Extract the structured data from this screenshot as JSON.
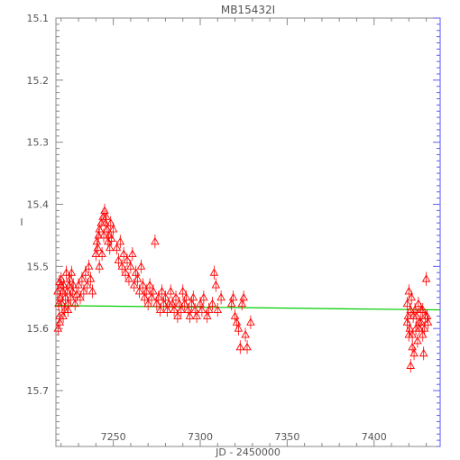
{
  "chart_data": {
    "type": "scatter",
    "title": "MB15432I",
    "xlabel": "JD - 2450000",
    "ylabel": "I",
    "xlim": [
      7217,
      7438
    ],
    "ylim": [
      15.79,
      15.1
    ],
    "y_inverted": true,
    "x_ticks": [
      "7250",
      "7300",
      "7350",
      "7400"
    ],
    "x_tick_values": [
      7250,
      7300,
      7350,
      7400
    ],
    "y_ticks": [
      "15.1",
      "15.2",
      "15.3",
      "15.4",
      "15.5",
      "15.6",
      "15.7"
    ],
    "y_tick_values": [
      15.1,
      15.2,
      15.3,
      15.4,
      15.5,
      15.6,
      15.7
    ],
    "grid": false,
    "colors": {
      "points": "#ff0000",
      "model": "#00cc00",
      "axes": "#888888",
      "right_axis": "#5a5aff"
    },
    "model_line": {
      "x": [
        7217,
        7438
      ],
      "y": [
        15.563,
        15.57
      ]
    },
    "series": [
      {
        "marker": "open-triangle",
        "error": 0.011,
        "points": [
          [
            7218,
            15.54
          ],
          [
            7218.5,
            15.56
          ],
          [
            7219,
            15.58
          ],
          [
            7219.5,
            15.55
          ],
          [
            7220,
            15.52
          ],
          [
            7220.5,
            15.56
          ],
          [
            7221,
            15.54
          ],
          [
            7221.5,
            15.53
          ],
          [
            7222,
            15.57
          ],
          [
            7222.5,
            15.55
          ],
          [
            7223,
            15.51
          ],
          [
            7223.5,
            15.54
          ],
          [
            7224,
            15.56
          ],
          [
            7224.5,
            15.53
          ],
          [
            7225,
            15.52
          ],
          [
            7225.5,
            15.55
          ],
          [
            7226,
            15.51
          ],
          [
            7226.5,
            15.54
          ],
          [
            7227,
            15.53
          ],
          [
            7228,
            15.56
          ],
          [
            7229,
            15.545
          ],
          [
            7230,
            15.53
          ],
          [
            7231,
            15.55
          ],
          [
            7232,
            15.52
          ],
          [
            7233,
            15.54
          ],
          [
            7234,
            15.51
          ],
          [
            7235,
            15.53
          ],
          [
            7236,
            15.5
          ],
          [
            7237,
            15.52
          ],
          [
            7238,
            15.54
          ],
          [
            7218.2,
            15.6
          ],
          [
            7219.2,
            15.59
          ],
          [
            7221.2,
            15.58
          ],
          [
            7219,
            15.525
          ],
          [
            7220,
            15.53
          ],
          [
            7224,
            15.57
          ],
          [
            7240,
            15.48
          ],
          [
            7240.5,
            15.46
          ],
          [
            7241,
            15.47
          ],
          [
            7241.5,
            15.45
          ],
          [
            7242,
            15.44
          ],
          [
            7242,
            15.5
          ],
          [
            7243,
            15.43
          ],
          [
            7243.5,
            15.48
          ],
          [
            7244,
            15.42
          ],
          [
            7244.5,
            15.45
          ],
          [
            7245,
            15.41
          ],
          [
            7245.5,
            15.43
          ],
          [
            7246,
            15.42
          ],
          [
            7246.5,
            15.44
          ],
          [
            7247,
            15.46
          ],
          [
            7247.5,
            15.45
          ],
          [
            7248,
            15.47
          ],
          [
            7248.5,
            15.43
          ],
          [
            7249,
            15.455
          ],
          [
            7250,
            15.44
          ],
          [
            7252,
            15.47
          ],
          [
            7253,
            15.49
          ],
          [
            7254,
            15.46
          ],
          [
            7255,
            15.5
          ],
          [
            7256,
            15.48
          ],
          [
            7257,
            15.51
          ],
          [
            7258,
            15.49
          ],
          [
            7259,
            15.52
          ],
          [
            7260,
            15.5
          ],
          [
            7261,
            15.48
          ],
          [
            7262,
            15.53
          ],
          [
            7263,
            15.51
          ],
          [
            7264,
            15.52
          ],
          [
            7265,
            15.54
          ],
          [
            7266,
            15.5
          ],
          [
            7267,
            15.53
          ],
          [
            7268,
            15.55
          ],
          [
            7269,
            15.54
          ],
          [
            7270,
            15.56
          ],
          [
            7271,
            15.53
          ],
          [
            7272,
            15.55
          ],
          [
            7273,
            15.54
          ],
          [
            7274,
            15.46
          ],
          [
            7275,
            15.56
          ],
          [
            7276,
            15.55
          ],
          [
            7277,
            15.57
          ],
          [
            7278,
            15.54
          ],
          [
            7279,
            15.56
          ],
          [
            7280,
            15.55
          ],
          [
            7281,
            15.57
          ],
          [
            7282,
            15.56
          ],
          [
            7283,
            15.54
          ],
          [
            7284,
            15.56
          ],
          [
            7285,
            15.57
          ],
          [
            7286,
            15.55
          ],
          [
            7287,
            15.58
          ],
          [
            7288,
            15.56
          ],
          [
            7289,
            15.57
          ],
          [
            7290,
            15.54
          ],
          [
            7291,
            15.56
          ],
          [
            7292,
            15.55
          ],
          [
            7293,
            15.57
          ],
          [
            7294,
            15.58
          ],
          [
            7295,
            15.56
          ],
          [
            7296,
            15.55
          ],
          [
            7297,
            15.57
          ],
          [
            7298,
            15.58
          ],
          [
            7300,
            15.56
          ],
          [
            7301,
            15.57
          ],
          [
            7302,
            15.55
          ],
          [
            7304,
            15.58
          ],
          [
            7305,
            15.57
          ],
          [
            7307,
            15.56
          ],
          [
            7308,
            15.51
          ],
          [
            7309,
            15.53
          ],
          [
            7310,
            15.57
          ],
          [
            7312,
            15.55
          ],
          [
            7318,
            15.56
          ],
          [
            7319,
            15.55
          ],
          [
            7320,
            15.58
          ],
          [
            7321,
            15.59
          ],
          [
            7322,
            15.6
          ],
          [
            7323,
            15.63
          ],
          [
            7324,
            15.56
          ],
          [
            7325,
            15.55
          ],
          [
            7326,
            15.61
          ],
          [
            7327,
            15.63
          ],
          [
            7329,
            15.59
          ],
          [
            7419,
            15.56
          ],
          [
            7419.5,
            15.58
          ],
          [
            7420,
            15.54
          ],
          [
            7420.5,
            15.6
          ],
          [
            7421,
            15.57
          ],
          [
            7421.5,
            15.55
          ],
          [
            7422,
            15.61
          ],
          [
            7422.5,
            15.58
          ],
          [
            7423,
            15.64
          ],
          [
            7423.5,
            15.57
          ],
          [
            7424,
            15.6
          ],
          [
            7424.5,
            15.58
          ],
          [
            7425,
            15.62
          ],
          [
            7425.5,
            15.56
          ],
          [
            7426,
            15.59
          ],
          [
            7427,
            15.57
          ],
          [
            7428,
            15.61
          ],
          [
            7428.5,
            15.64
          ],
          [
            7429,
            15.6
          ],
          [
            7429.5,
            15.58
          ],
          [
            7430,
            15.52
          ],
          [
            7430.5,
            15.58
          ],
          [
            7431,
            15.59
          ],
          [
            7419,
            15.59
          ],
          [
            7420,
            15.61
          ],
          [
            7421,
            15.66
          ],
          [
            7422,
            15.63
          ],
          [
            7426,
            15.6
          ],
          [
            7427,
            15.59
          ],
          [
            7428,
            15.57
          ]
        ]
      }
    ]
  }
}
